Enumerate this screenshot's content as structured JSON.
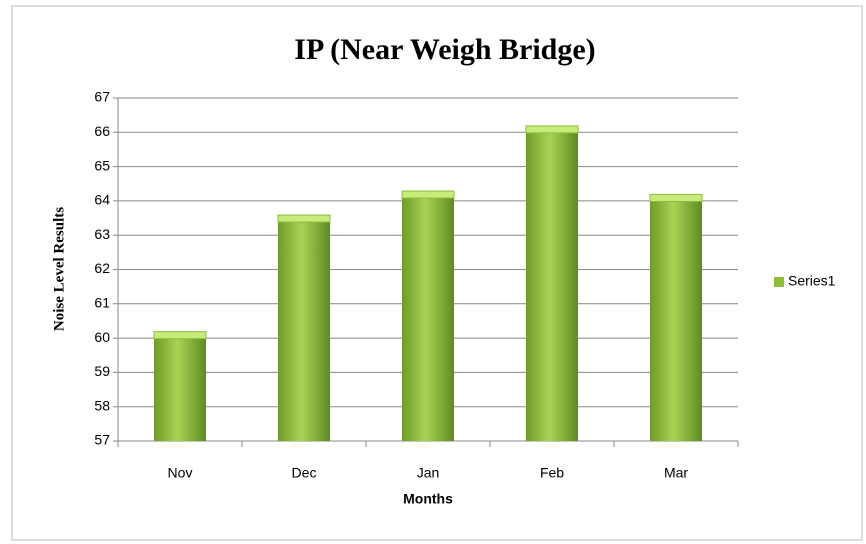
{
  "chart_data": {
    "type": "bar",
    "title": "IP (Near Weigh Bridge)",
    "x_label": "Months",
    "y_label": "Noise Level Results",
    "categories": [
      "Nov",
      "Dec",
      "Jan",
      "Feb",
      "Mar"
    ],
    "series": [
      {
        "name": "Series1",
        "color": "#8fbc3a",
        "values": [
          60.1,
          63.5,
          64.2,
          66.1,
          64.1
        ]
      }
    ],
    "ylim": [
      57,
      67
    ],
    "yticks": [
      57,
      58,
      59,
      60,
      61,
      62,
      63,
      64,
      65,
      66,
      67
    ],
    "grid": true,
    "legend": "right"
  }
}
